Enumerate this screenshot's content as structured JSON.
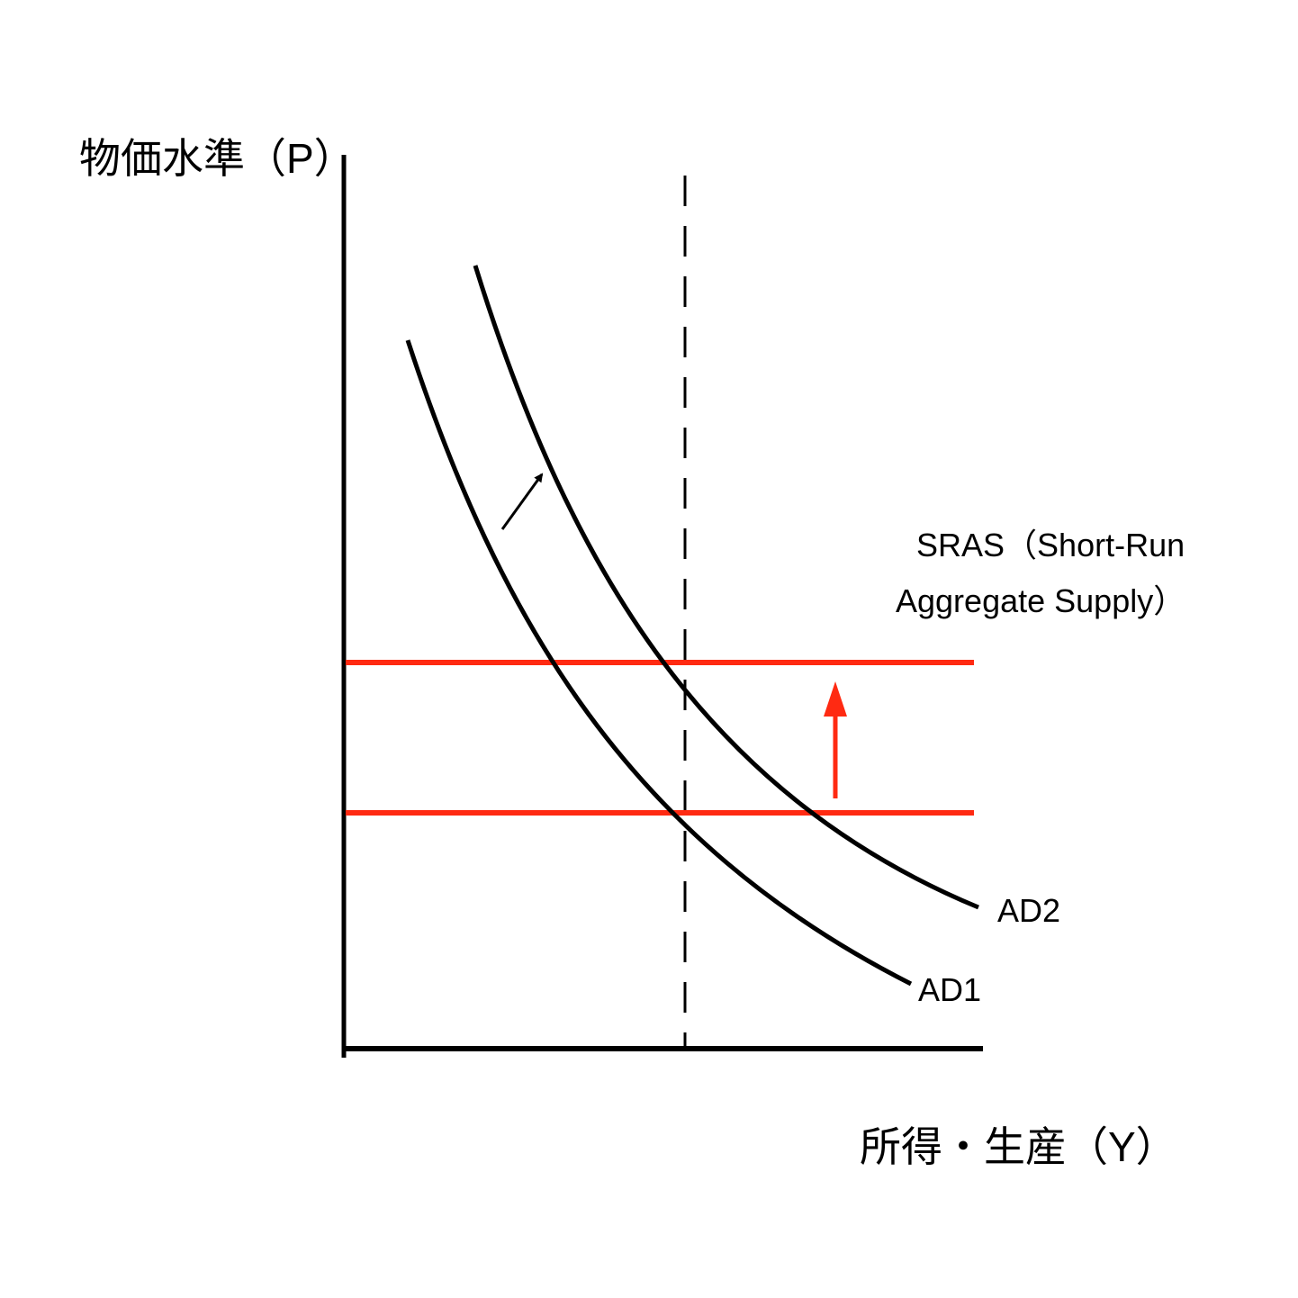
{
  "axes": {
    "y_label": "物価水準（P）",
    "x_label": "所得・生産（Y）"
  },
  "sras_label": [
    "SRAS（Short-Run",
    "Aggregate Supply）"
  ],
  "curves": {
    "ad2": "AD2",
    "ad1": "AD1"
  }
}
